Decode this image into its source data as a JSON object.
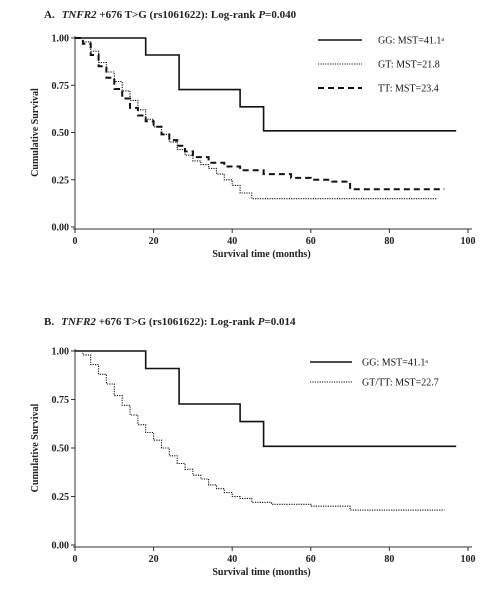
{
  "chart_data": [
    {
      "type": "line",
      "panel_letter": "A.",
      "title_gene": "TNFR2",
      "title_variant": " +676 T>G (rs1061622): Log-rank ",
      "title_p_label": "P",
      "title_p_value": "=0.040",
      "xlabel": "Survival time (months)",
      "ylabel": "Cumulative Survival",
      "xlim": [
        0,
        100
      ],
      "ylim": [
        0,
        1
      ],
      "xticks": [
        "0",
        "20",
        "40",
        "60",
        "80",
        "100"
      ],
      "yticks": [
        "0.00",
        "0.25",
        "0.50",
        "0.75",
        "1.00"
      ],
      "legend_position": "top-right",
      "series": [
        {
          "name": "GG: MST=41.1ᵃ",
          "style": "solid",
          "x": [
            0,
            18,
            18,
            26.5,
            26.5,
            42,
            42,
            48,
            48,
            97
          ],
          "y": [
            1.0,
            1.0,
            0.91,
            0.91,
            0.727,
            0.727,
            0.636,
            0.636,
            0.509,
            0.509
          ]
        },
        {
          "name": "GT: MST=21.8",
          "style": "dotted",
          "x": [
            0,
            2,
            4,
            6,
            8,
            10,
            12,
            14,
            16,
            18,
            20,
            22,
            24,
            26,
            28,
            30,
            32,
            34,
            36,
            38,
            40,
            42,
            45,
            50,
            60,
            70,
            80,
            92
          ],
          "y": [
            1.0,
            0.98,
            0.93,
            0.87,
            0.82,
            0.77,
            0.72,
            0.67,
            0.62,
            0.57,
            0.53,
            0.49,
            0.45,
            0.41,
            0.38,
            0.35,
            0.33,
            0.31,
            0.28,
            0.25,
            0.22,
            0.18,
            0.15,
            0.15,
            0.15,
            0.15,
            0.15,
            0.15
          ]
        },
        {
          "name": "TT: MST=23.4",
          "style": "dashed",
          "x": [
            0,
            2,
            4,
            6,
            8,
            10,
            12,
            14,
            16,
            18,
            20,
            22,
            24,
            26,
            28,
            30,
            34,
            38,
            42,
            48,
            55,
            60,
            65,
            69,
            70,
            80,
            90,
            94
          ],
          "y": [
            1.0,
            0.97,
            0.91,
            0.85,
            0.79,
            0.73,
            0.68,
            0.63,
            0.59,
            0.56,
            0.53,
            0.49,
            0.46,
            0.43,
            0.4,
            0.37,
            0.34,
            0.32,
            0.3,
            0.28,
            0.26,
            0.25,
            0.24,
            0.24,
            0.2,
            0.2,
            0.2,
            0.2
          ]
        }
      ]
    },
    {
      "type": "line",
      "panel_letter": "B.",
      "title_gene": "TNFR2",
      "title_variant": " +676 T>G (rs1061622): Log-rank ",
      "title_p_label": "P",
      "title_p_value": "=0.014",
      "xlabel": "Survival time (months)",
      "ylabel": "Cumulative Survival",
      "xlim": [
        0,
        100
      ],
      "ylim": [
        0,
        1
      ],
      "xticks": [
        "0",
        "20",
        "40",
        "60",
        "80",
        "100"
      ],
      "yticks": [
        "0.00",
        "0.25",
        "0.50",
        "0.75",
        "1.00"
      ],
      "legend_position": "top-right",
      "series": [
        {
          "name": "GG: MST=41.1ᵃ",
          "style": "solid",
          "x": [
            0,
            18,
            18,
            26.5,
            26.5,
            42,
            42,
            48,
            48,
            97
          ],
          "y": [
            1.0,
            1.0,
            0.91,
            0.91,
            0.727,
            0.727,
            0.636,
            0.636,
            0.509,
            0.509
          ]
        },
        {
          "name": "GT/TT: MST=22.7",
          "style": "dotted",
          "x": [
            0,
            2,
            4,
            6,
            8,
            10,
            12,
            14,
            16,
            18,
            20,
            22,
            24,
            26,
            28,
            30,
            32,
            34,
            36,
            38,
            40,
            42,
            45,
            50,
            60,
            68,
            70,
            80,
            94
          ],
          "y": [
            1.0,
            0.98,
            0.93,
            0.88,
            0.83,
            0.77,
            0.72,
            0.67,
            0.62,
            0.58,
            0.54,
            0.5,
            0.46,
            0.42,
            0.39,
            0.36,
            0.34,
            0.31,
            0.29,
            0.27,
            0.25,
            0.24,
            0.22,
            0.21,
            0.2,
            0.2,
            0.18,
            0.18,
            0.18
          ]
        }
      ]
    }
  ]
}
